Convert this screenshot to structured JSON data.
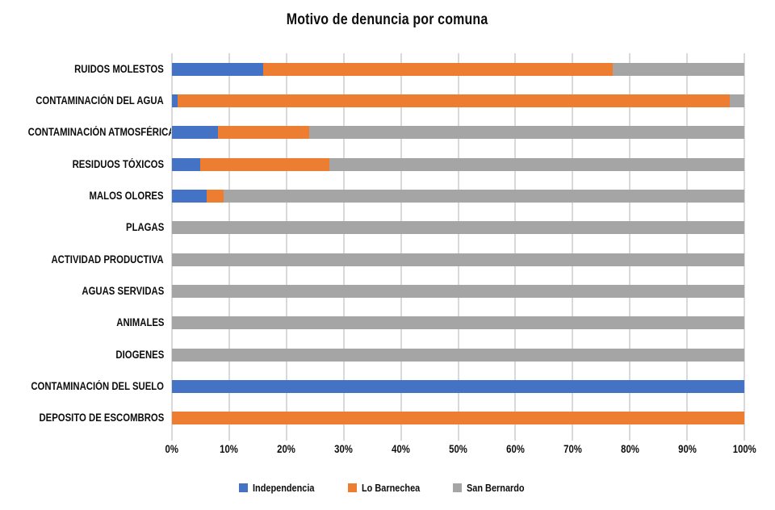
{
  "chart_data": {
    "type": "bar",
    "orientation": "horizontal",
    "stacked": true,
    "stacked_mode": "percent",
    "title": "Motivo de denuncia por comuna",
    "categories": [
      "RUIDOS MOLESTOS",
      "CONTAMINACIÓN DEL AGUA",
      "CONTAMINACIÓN ATMOSFÉRICA",
      "RESIDUOS TÓXICOS",
      "MALOS OLORES",
      "PLAGAS",
      "ACTIVIDAD PRODUCTIVA",
      "AGUAS SERVIDAS",
      "ANIMALES",
      "DIOGENES",
      "CONTAMINACIÓN DEL SUELO",
      "DEPOSITO DE ESCOMBROS"
    ],
    "series": [
      {
        "name": "Independencia",
        "color": "#4472C4",
        "values": [
          16,
          1,
          8,
          5,
          6,
          0,
          0,
          0,
          0,
          0,
          100,
          0
        ]
      },
      {
        "name": "Lo Barnechea",
        "color": "#ED7D31",
        "values": [
          61,
          96.5,
          16,
          22.5,
          3,
          0,
          0,
          0,
          0,
          0,
          0,
          100
        ]
      },
      {
        "name": "San Bernardo",
        "color": "#A5A5A5",
        "values": [
          23,
          2.5,
          76,
          72.5,
          91,
          100,
          100,
          100,
          100,
          100,
          0,
          0
        ]
      }
    ],
    "x_ticks": [
      "0%",
      "10%",
      "20%",
      "30%",
      "40%",
      "50%",
      "60%",
      "70%",
      "80%",
      "90%",
      "100%"
    ],
    "xlim": [
      0,
      100
    ],
    "grid": "vertical-gridlines-on",
    "legend_position": "bottom"
  },
  "colors": {
    "gridline": "#D9D9D9",
    "text": "#0D0D0D",
    "background": "#FFFFFF"
  }
}
